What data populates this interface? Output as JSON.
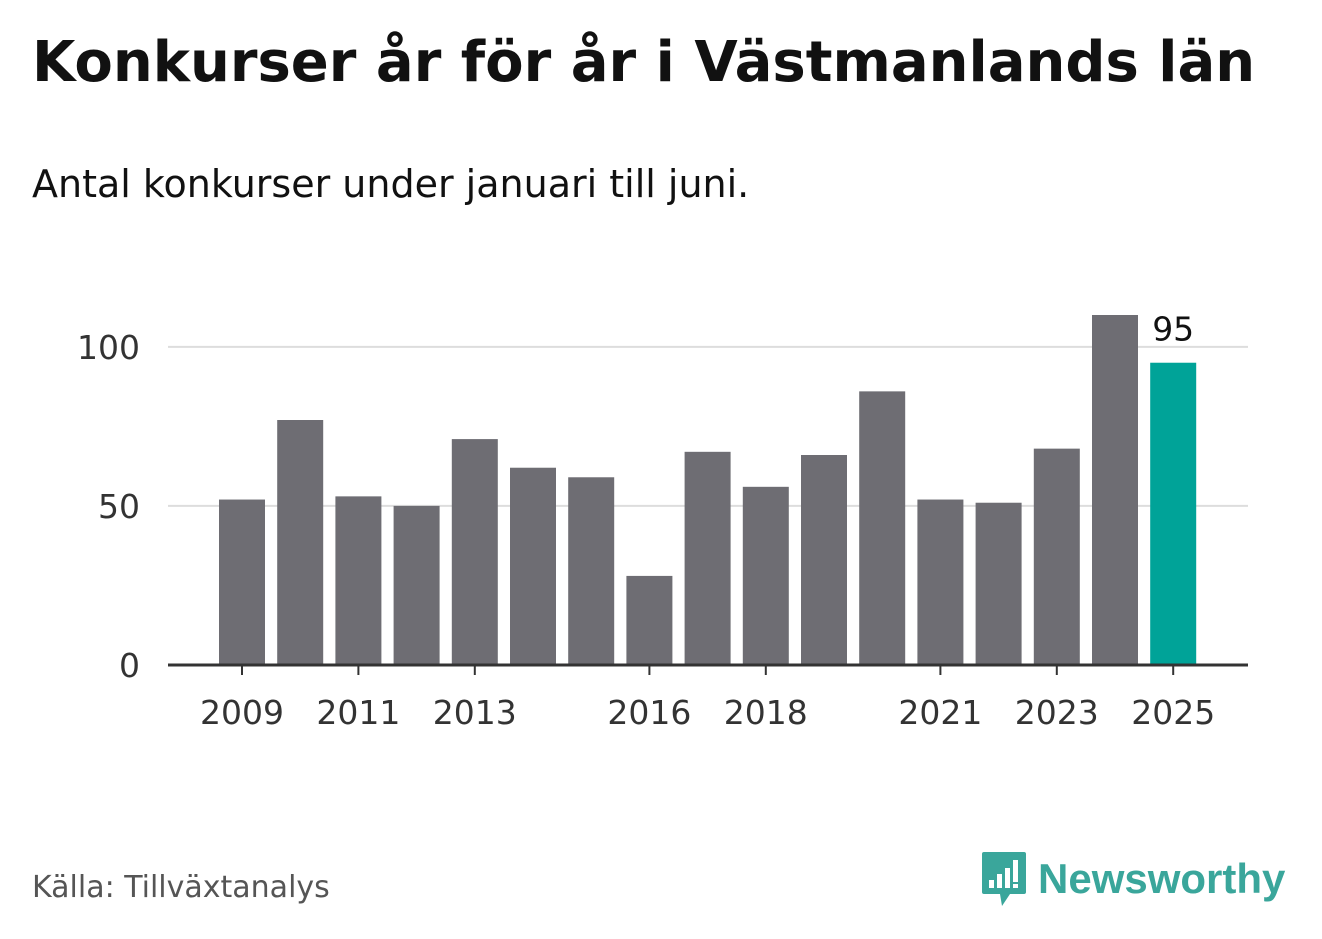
{
  "title": "Konkurser år för år i Västmanlands län",
  "subtitle": "Antal konkurser under januari till juni.",
  "source": "Källa: Tillväxtanalys",
  "brand": {
    "name": "Newsworthy",
    "icon": "newsworthy-logo-icon",
    "color": "#3aa69b"
  },
  "colors": {
    "bar": "#6e6d73",
    "highlight": "#00a398",
    "grid": "#dddddd",
    "axis": "#333333"
  },
  "chart_data": {
    "type": "bar",
    "categories": [
      "2009",
      "2010",
      "2011",
      "2012",
      "2013",
      "2014",
      "2015",
      "2016",
      "2017",
      "2018",
      "2019",
      "2020",
      "2021",
      "2022",
      "2023",
      "2024",
      "2025"
    ],
    "values": [
      52,
      77,
      53,
      50,
      71,
      62,
      59,
      28,
      67,
      56,
      66,
      86,
      52,
      51,
      68,
      110,
      95
    ],
    "tick_labels": [
      "2009",
      "2011",
      "2013",
      "2016",
      "2018",
      "2021",
      "2023",
      "2025"
    ],
    "y_ticks": [
      0,
      50,
      100
    ],
    "ylim": [
      0,
      110
    ],
    "grid": true,
    "highlight_category": "2025",
    "annotation": {
      "category": "2025",
      "text": "95"
    },
    "xlabel": "",
    "ylabel": ""
  }
}
